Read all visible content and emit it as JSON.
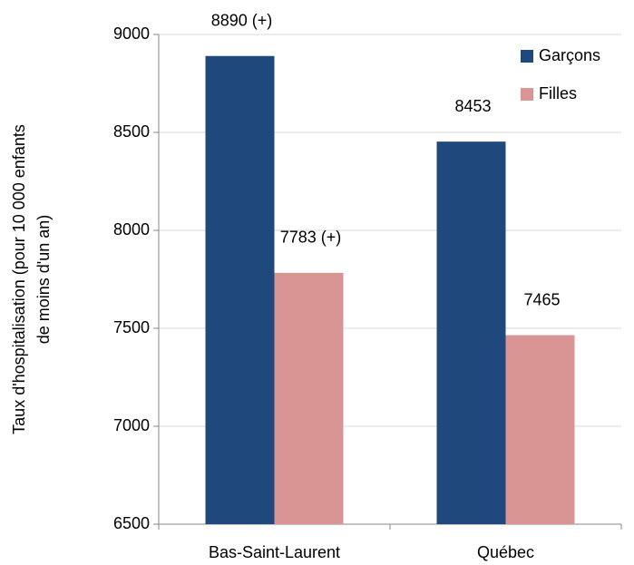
{
  "chart_data": {
    "type": "bar",
    "ylabel": [
      "Taux d'hospitalisation  (pour 10 000 enfants",
      "de moins d'un an)"
    ],
    "categories": [
      "Bas-Saint-Laurent",
      "Québec"
    ],
    "series": [
      {
        "name": "Garçons",
        "color": "#1f497d",
        "values": [
          8890,
          8453
        ],
        "value_labels": [
          "8890 (+)",
          "8453"
        ]
      },
      {
        "name": "Filles",
        "color": "#d99594",
        "values": [
          7783,
          7465
        ],
        "value_labels": [
          "7783 (+)",
          "7465"
        ]
      }
    ],
    "ylim": [
      6500,
      9000
    ],
    "yticks": [
      6500,
      7000,
      7500,
      8000,
      8500,
      9000
    ],
    "grid": true,
    "legend": "top-right"
  }
}
